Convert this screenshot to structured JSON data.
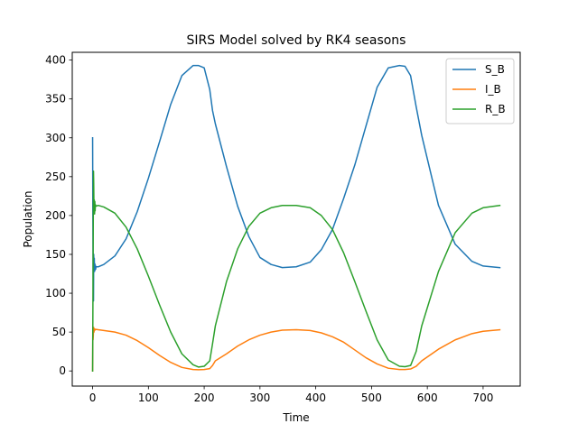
{
  "chart_data": {
    "type": "line",
    "title": "SIRS Model solved by RK4 seasons",
    "xlabel": "Time",
    "ylabel": "Population",
    "xlim": [
      -36.5,
      766.5
    ],
    "ylim": [
      -19.5,
      410
    ],
    "xticks": [
      0,
      100,
      200,
      300,
      400,
      500,
      600,
      700
    ],
    "yticks": [
      0,
      50,
      100,
      150,
      200,
      250,
      300,
      350,
      400
    ],
    "grid": false,
    "legend_position": "top-right",
    "series": [
      {
        "name": "S_B",
        "color": "#1f77b4",
        "x": [
          0,
          0.4,
          0.8,
          1.2,
          1.6,
          2,
          2.5,
          3,
          3.5,
          4,
          4.5,
          5,
          5.5,
          6,
          10,
          20,
          40,
          60,
          80,
          100,
          120,
          140,
          160,
          180,
          190,
          200,
          210,
          215,
          220,
          240,
          260,
          280,
          300,
          320,
          340,
          365,
          390,
          410,
          430,
          450,
          470,
          490,
          510,
          530,
          550,
          560,
          570,
          580,
          590,
          620,
          650,
          680,
          700,
          730
        ],
        "y": [
          300,
          210,
          140,
          96,
          90,
          150,
          130,
          145,
          128,
          138,
          130,
          136,
          131,
          134,
          134,
          137,
          148,
          170,
          205,
          248,
          295,
          343,
          380,
          393,
          393,
          390,
          362,
          335,
          318,
          263,
          212,
          173,
          146,
          137,
          133,
          134,
          140,
          156,
          182,
          222,
          265,
          315,
          365,
          390,
          393,
          392,
          380,
          340,
          303,
          213,
          163,
          141,
          135,
          133
        ]
      },
      {
        "name": "I_B",
        "color": "#ff7f0e",
        "x": [
          0,
          0.4,
          0.8,
          1.2,
          1.6,
          2,
          2.5,
          3,
          3.5,
          4,
          5,
          6,
          10,
          20,
          40,
          60,
          80,
          100,
          120,
          140,
          160,
          180,
          190,
          200,
          210,
          215,
          220,
          240,
          260,
          280,
          300,
          320,
          340,
          365,
          390,
          410,
          430,
          450,
          470,
          490,
          510,
          530,
          550,
          560,
          570,
          580,
          590,
          620,
          650,
          680,
          700,
          730
        ],
        "y": [
          0,
          55,
          40,
          45,
          52,
          56,
          50,
          54,
          52,
          54,
          53,
          53.5,
          53,
          52,
          50,
          46,
          39,
          30,
          20,
          11,
          4.5,
          1.8,
          1.6,
          1.8,
          3,
          7,
          13,
          22,
          32,
          40,
          46,
          50,
          52.5,
          53,
          52,
          49,
          44,
          37,
          27,
          17,
          9,
          3.5,
          1.8,
          1.8,
          2.5,
          6,
          13,
          28,
          40,
          48,
          51,
          53
        ]
      },
      {
        "name": "R_B",
        "color": "#2ca02c",
        "x": [
          0,
          0.4,
          0.8,
          1.2,
          1.6,
          2,
          2.5,
          3,
          3.5,
          4,
          4.5,
          5,
          6,
          10,
          20,
          40,
          60,
          80,
          100,
          120,
          140,
          160,
          180,
          190,
          200,
          210,
          215,
          220,
          240,
          260,
          280,
          300,
          320,
          340,
          365,
          390,
          410,
          430,
          450,
          470,
          490,
          510,
          530,
          550,
          560,
          570,
          580,
          590,
          620,
          650,
          680,
          700,
          730
        ],
        "y": [
          0,
          60,
          130,
          200,
          257,
          240,
          205,
          220,
          202,
          218,
          206,
          214,
          212,
          213,
          211,
          203,
          185,
          157,
          122,
          85,
          50,
          22,
          8,
          5,
          6,
          13,
          35,
          58,
          115,
          157,
          186,
          203,
          210,
          213,
          213,
          210,
          200,
          182,
          152,
          115,
          77,
          40,
          14,
          6,
          5.5,
          7,
          25,
          58,
          128,
          178,
          203,
          210,
          213
        ]
      }
    ]
  }
}
